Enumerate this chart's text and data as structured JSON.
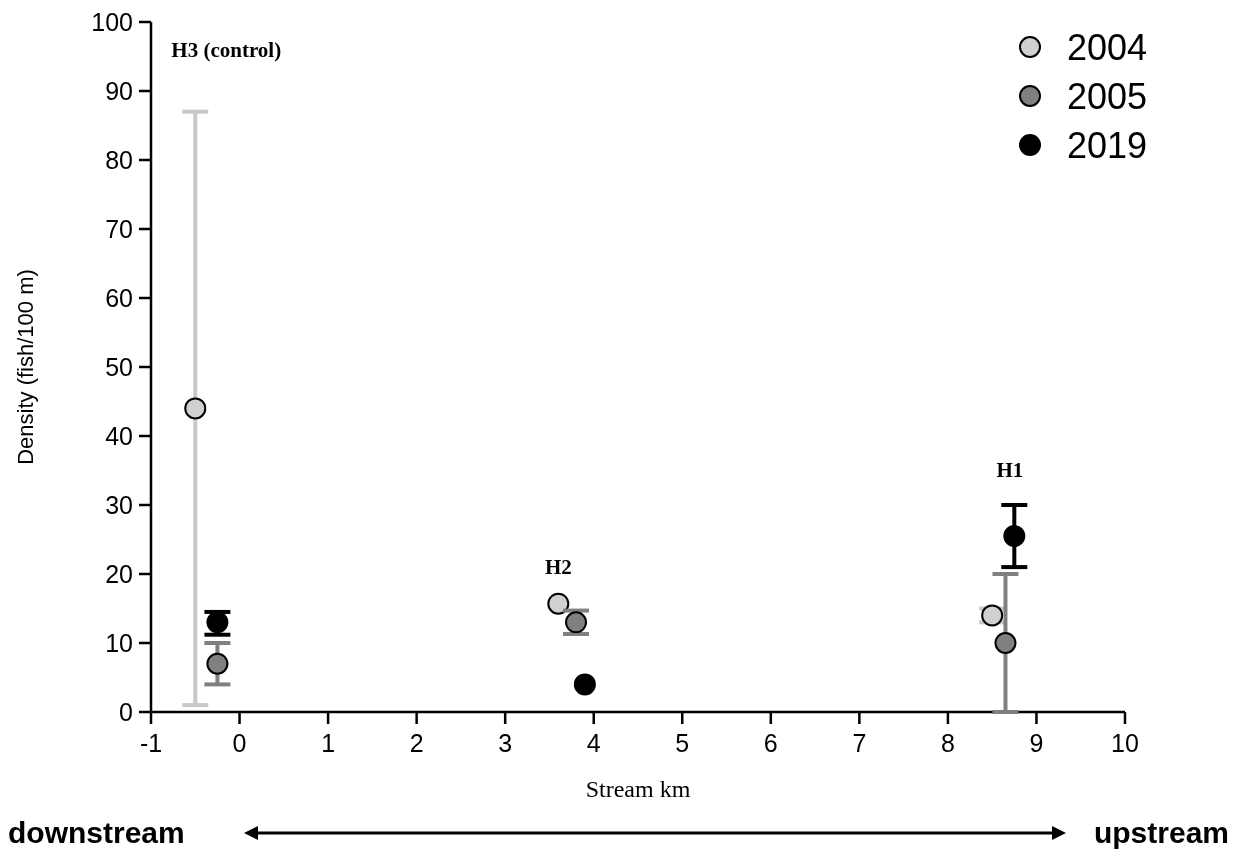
{
  "chart_data": {
    "type": "scatter",
    "xlabel": "Stream km",
    "ylabel": "Density (fish/100 m)",
    "xlim": [
      -1,
      10
    ],
    "xticks": [
      -1,
      0,
      1,
      2,
      3,
      4,
      5,
      6,
      7,
      8,
      9,
      10
    ],
    "ylim": [
      0,
      100
    ],
    "yticks": [
      0,
      10,
      20,
      30,
      40,
      50,
      60,
      70,
      80,
      90,
      100
    ],
    "grid": false,
    "legend": "top right",
    "marker": "circle",
    "series": [
      {
        "name": "2004",
        "color": "#d0d0d0",
        "x": [
          -0.5,
          3.6,
          8.5
        ],
        "values": [
          44,
          15.7,
          14
        ],
        "errors": [
          [
            1,
            87
          ],
          null,
          [
            13,
            15
          ]
        ]
      },
      {
        "name": "2005",
        "color": "#808080",
        "x": [
          -0.25,
          3.8,
          8.65
        ],
        "values": [
          7,
          13,
          10
        ],
        "errors": [
          [
            4,
            10
          ],
          [
            11.3,
            14.7
          ],
          [
            0,
            20
          ]
        ]
      },
      {
        "name": "2019",
        "color": "#000000",
        "x": [
          -0.25,
          3.9,
          8.75
        ],
        "values": [
          13,
          4,
          25.5
        ],
        "errors": [
          [
            11.2,
            14.5
          ],
          null,
          [
            21,
            30
          ]
        ]
      }
    ],
    "annotations": [
      "H3 (control)",
      "H2",
      "H1",
      "downstream",
      "upstream"
    ]
  }
}
